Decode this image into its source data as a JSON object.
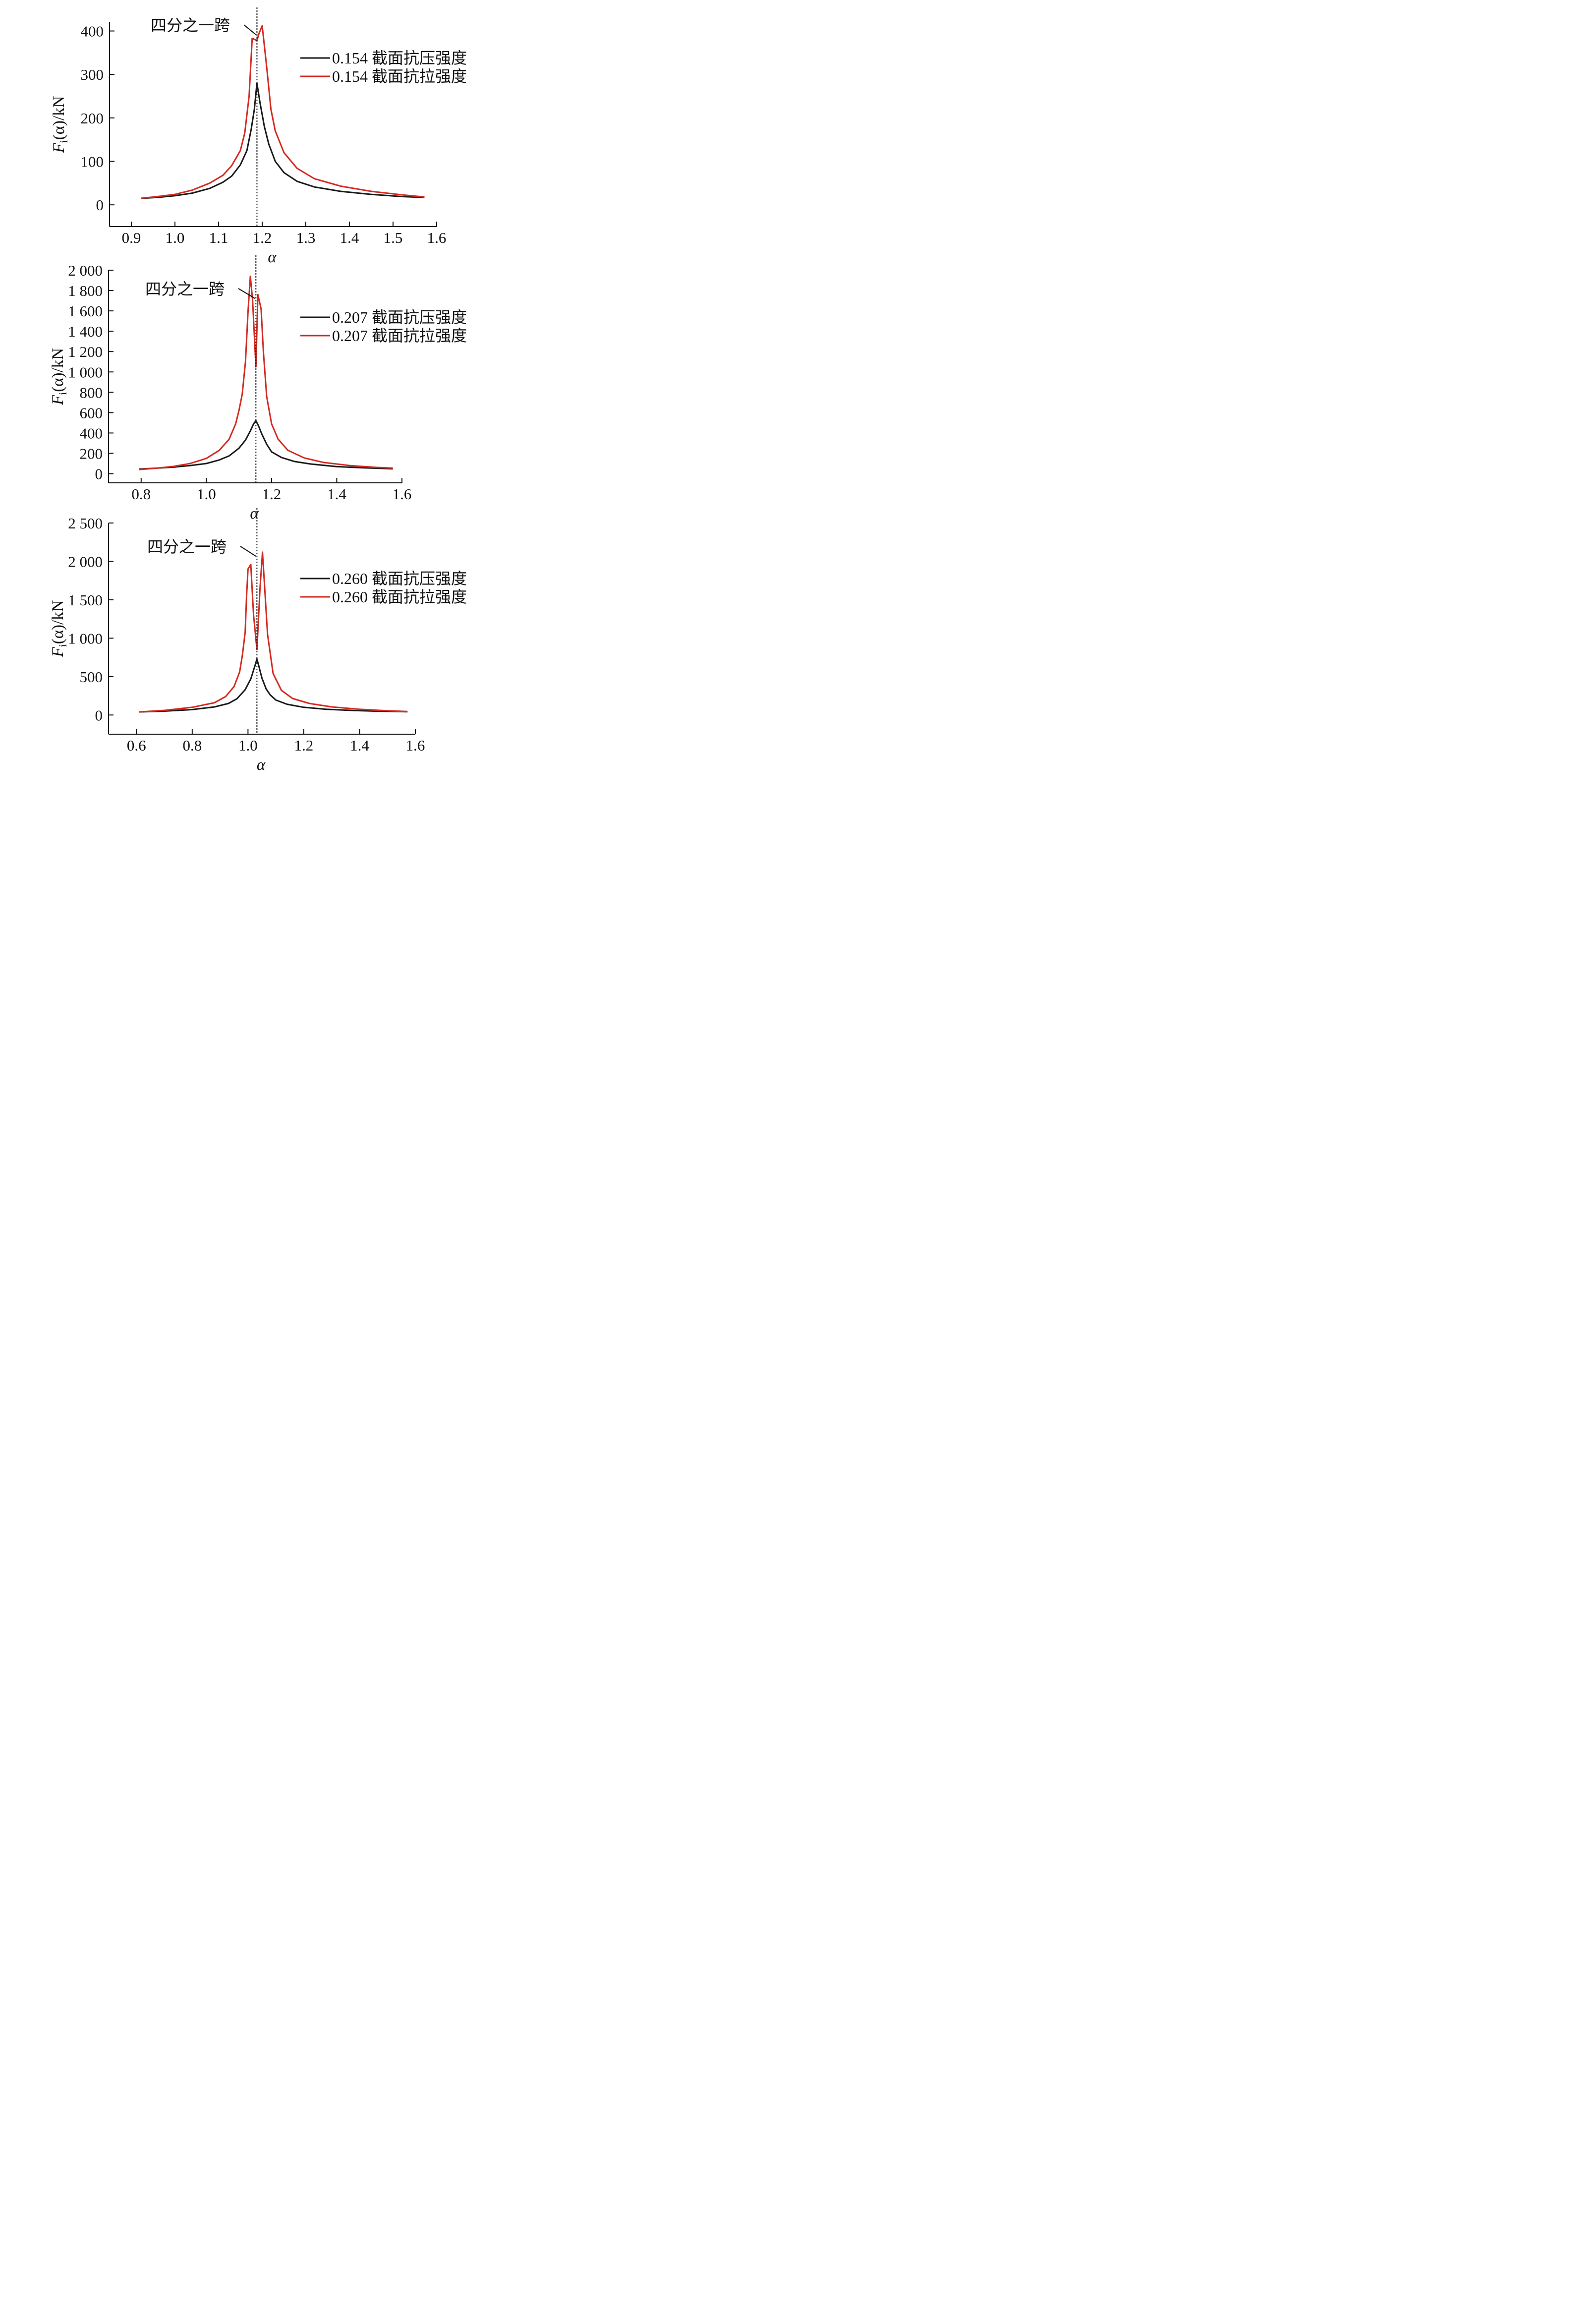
{
  "colors": {
    "compressive": "#1a1a1a",
    "tensile": "#d42a20",
    "axis": "#111111",
    "marker": "#111111"
  },
  "chart_data": [
    {
      "type": "line",
      "xlabel": "α",
      "ylabel": {
        "main": "F",
        "sub": "i",
        "rest": "(α)/kN"
      },
      "xlim": [
        0.85,
        1.6
      ],
      "ylim": [
        -50,
        420
      ],
      "xticks": [
        0.9,
        1.0,
        1.1,
        1.2,
        1.3,
        1.4,
        1.5,
        1.6
      ],
      "xtick_labels": [
        "0.9",
        "1.0",
        "1.1",
        "1.2",
        "1.3",
        "1.4",
        "1.5",
        "1.6"
      ],
      "yticks": [
        0,
        100,
        200,
        300,
        400
      ],
      "ytick_labels": [
        "0",
        "100",
        "200",
        "300",
        "400"
      ],
      "grid": false,
      "legend_position": "top-right",
      "annotation": {
        "text": "四分之一跨",
        "x": 1.188
      },
      "series": [
        {
          "name": "0.154 截面抗压强度",
          "color_key": "compressive",
          "x": [
            0.922,
            0.96,
            1.0,
            1.04,
            1.08,
            1.11,
            1.13,
            1.15,
            1.165,
            1.175,
            1.182,
            1.188,
            1.195,
            1.205,
            1.215,
            1.23,
            1.25,
            1.28,
            1.32,
            1.38,
            1.45,
            1.52,
            1.572
          ],
          "y": [
            15,
            17,
            21,
            27,
            38,
            52,
            66,
            92,
            125,
            175,
            220,
            280,
            235,
            180,
            140,
            100,
            74,
            54,
            41,
            31,
            24,
            19,
            17
          ]
        },
        {
          "name": "0.154 截面抗拉强度",
          "color_key": "tensile",
          "x": [
            0.922,
            0.96,
            1.0,
            1.04,
            1.08,
            1.11,
            1.13,
            1.15,
            1.16,
            1.17,
            1.177,
            1.188,
            1.193,
            1.2,
            1.21,
            1.22,
            1.23,
            1.25,
            1.28,
            1.32,
            1.38,
            1.45,
            1.52,
            1.572
          ],
          "y": [
            15,
            19,
            24,
            34,
            50,
            68,
            90,
            125,
            165,
            250,
            383,
            378,
            395,
            412,
            320,
            220,
            170,
            120,
            84,
            60,
            43,
            31,
            23,
            18
          ]
        }
      ]
    },
    {
      "type": "line",
      "xlabel": "α",
      "ylabel": {
        "main": "F",
        "sub": "i",
        "rest": "(α)/kN"
      },
      "xlim": [
        0.7,
        1.6
      ],
      "ylim": [
        -90,
        2000
      ],
      "xticks": [
        0.8,
        1.0,
        1.2,
        1.4,
        1.6
      ],
      "xtick_labels": [
        "0.8",
        "1.0",
        "1.2",
        "1.4",
        "1.6"
      ],
      "yticks": [
        0,
        200,
        400,
        600,
        800,
        1000,
        1200,
        1400,
        1600,
        1800,
        2000
      ],
      "ytick_labels": [
        "0",
        "200",
        "400",
        "600",
        "800",
        "1 000",
        "1 200",
        "1 400",
        "1 600",
        "1 800",
        "2 000"
      ],
      "grid": false,
      "legend_position": "top-right",
      "annotation": {
        "text": "四分之一跨",
        "x": 1.152
      },
      "series": [
        {
          "name": "0.207 截面抗压强度",
          "color_key": "compressive",
          "x": [
            0.794,
            0.85,
            0.9,
            0.95,
            1.0,
            1.04,
            1.07,
            1.1,
            1.12,
            1.135,
            1.145,
            1.152,
            1.16,
            1.17,
            1.185,
            1.2,
            1.23,
            1.27,
            1.32,
            1.4,
            1.48,
            1.572
          ],
          "y": [
            45,
            55,
            65,
            80,
            100,
            135,
            175,
            250,
            330,
            420,
            490,
            520,
            470,
            390,
            290,
            215,
            160,
            120,
            95,
            70,
            58,
            48
          ]
        },
        {
          "name": "0.207 截面抗拉强度",
          "color_key": "tensile",
          "x": [
            0.794,
            0.85,
            0.9,
            0.95,
            1.0,
            1.04,
            1.07,
            1.09,
            1.1,
            1.11,
            1.12,
            1.128,
            1.135,
            1.142,
            1.152,
            1.158,
            1.168,
            1.175,
            1.185,
            1.2,
            1.22,
            1.25,
            1.3,
            1.36,
            1.44,
            1.52,
            1.572
          ],
          "y": [
            40,
            55,
            72,
            100,
            150,
            230,
            340,
            490,
            620,
            780,
            1100,
            1600,
            1940,
            1700,
            1050,
            1760,
            1620,
            1200,
            760,
            490,
            340,
            230,
            155,
            110,
            80,
            62,
            55
          ]
        }
      ]
    },
    {
      "type": "line",
      "xlabel": "α",
      "ylabel": {
        "main": "F",
        "sub": "i",
        "rest": "(α)/kN"
      },
      "xlim": [
        0.5,
        1.6
      ],
      "ylim": [
        -250,
        2500
      ],
      "xticks": [
        0.6,
        0.8,
        1.0,
        1.2,
        1.4,
        1.6
      ],
      "xtick_labels": [
        "0.6",
        "0.8",
        "1.0",
        "1.2",
        "1.4",
        "1.6"
      ],
      "yticks": [
        0,
        500,
        1000,
        1500,
        2000,
        2500
      ],
      "ytick_labels": [
        "0",
        "500",
        "1 000",
        "1 500",
        "2 000",
        "2 500"
      ],
      "grid": false,
      "legend_position": "top-right",
      "annotation": {
        "text": "四分之一跨",
        "x": 1.032
      },
      "series": [
        {
          "name": "0.260 截面抗压强度",
          "color_key": "compressive",
          "x": [
            0.61,
            0.7,
            0.8,
            0.88,
            0.93,
            0.96,
            0.99,
            1.01,
            1.025,
            1.032,
            1.04,
            1.05,
            1.065,
            1.08,
            1.1,
            1.14,
            1.2,
            1.28,
            1.38,
            1.48,
            1.572
          ],
          "y": [
            40,
            50,
            70,
            105,
            150,
            210,
            330,
            470,
            640,
            730,
            620,
            480,
            340,
            260,
            195,
            140,
            100,
            75,
            58,
            48,
            42
          ]
        },
        {
          "name": "0.260 截面抗拉强度",
          "color_key": "tensile",
          "x": [
            0.61,
            0.7,
            0.8,
            0.88,
            0.92,
            0.95,
            0.97,
            0.98,
            0.99,
            0.995,
            1.0,
            1.01,
            1.02,
            1.032,
            1.043,
            1.052,
            1.06,
            1.07,
            1.09,
            1.12,
            1.16,
            1.22,
            1.3,
            1.4,
            1.5,
            1.572
          ],
          "y": [
            40,
            60,
            100,
            160,
            240,
            370,
            560,
            780,
            1080,
            1550,
            1900,
            1960,
            1300,
            850,
            1650,
            2120,
            1650,
            1050,
            540,
            320,
            215,
            150,
            105,
            75,
            55,
            45
          ]
        }
      ]
    }
  ]
}
